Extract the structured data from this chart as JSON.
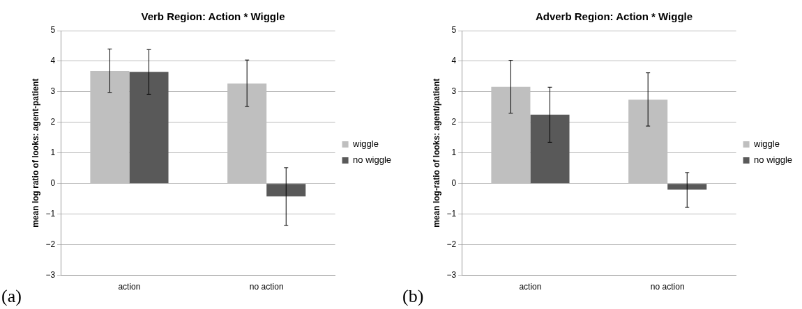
{
  "chart_data": [
    {
      "type": "bar",
      "title": "Verb Region: Action * Wiggle",
      "ylabel": "mean log ratio of looks: agent-patient",
      "categories": [
        "action",
        "no action"
      ],
      "series": [
        {
          "name": "wiggle",
          "color": "#bfbfbf",
          "values": [
            3.68,
            3.27
          ],
          "errors": [
            [
              2.98,
              4.4
            ],
            [
              2.52,
              4.04
            ]
          ]
        },
        {
          "name": "no wiggle",
          "color": "#595959",
          "values": [
            3.65,
            -0.42
          ],
          "errors": [
            [
              2.92,
              4.38
            ],
            [
              -1.37,
              0.52
            ]
          ]
        }
      ],
      "ylim": [
        -3,
        5
      ],
      "yticks": [
        -3,
        -2,
        -1,
        0,
        1,
        2,
        3,
        4,
        5
      ],
      "grid": "y",
      "legend": "right",
      "annotations": [
        "(a)"
      ]
    },
    {
      "type": "bar",
      "title": "Adverb Region: Action * Wiggle",
      "ylabel": "mean log-ratio of looks: agent/patient",
      "categories": [
        "action",
        "no action"
      ],
      "series": [
        {
          "name": "wiggle",
          "color": "#bfbfbf",
          "values": [
            3.16,
            2.74
          ],
          "errors": [
            [
              2.3,
              4.03
            ],
            [
              1.88,
              3.62
            ]
          ]
        },
        {
          "name": "no wiggle",
          "color": "#595959",
          "values": [
            2.25,
            -0.2
          ],
          "errors": [
            [
              1.35,
              3.15
            ],
            [
              -0.78,
              0.36
            ]
          ]
        }
      ],
      "ylim": [
        -3,
        5
      ],
      "yticks": [
        -3,
        -2,
        -1,
        0,
        1,
        2,
        3,
        4,
        5
      ],
      "grid": "y",
      "legend": "right",
      "annotations": [
        "(b)"
      ]
    }
  ]
}
